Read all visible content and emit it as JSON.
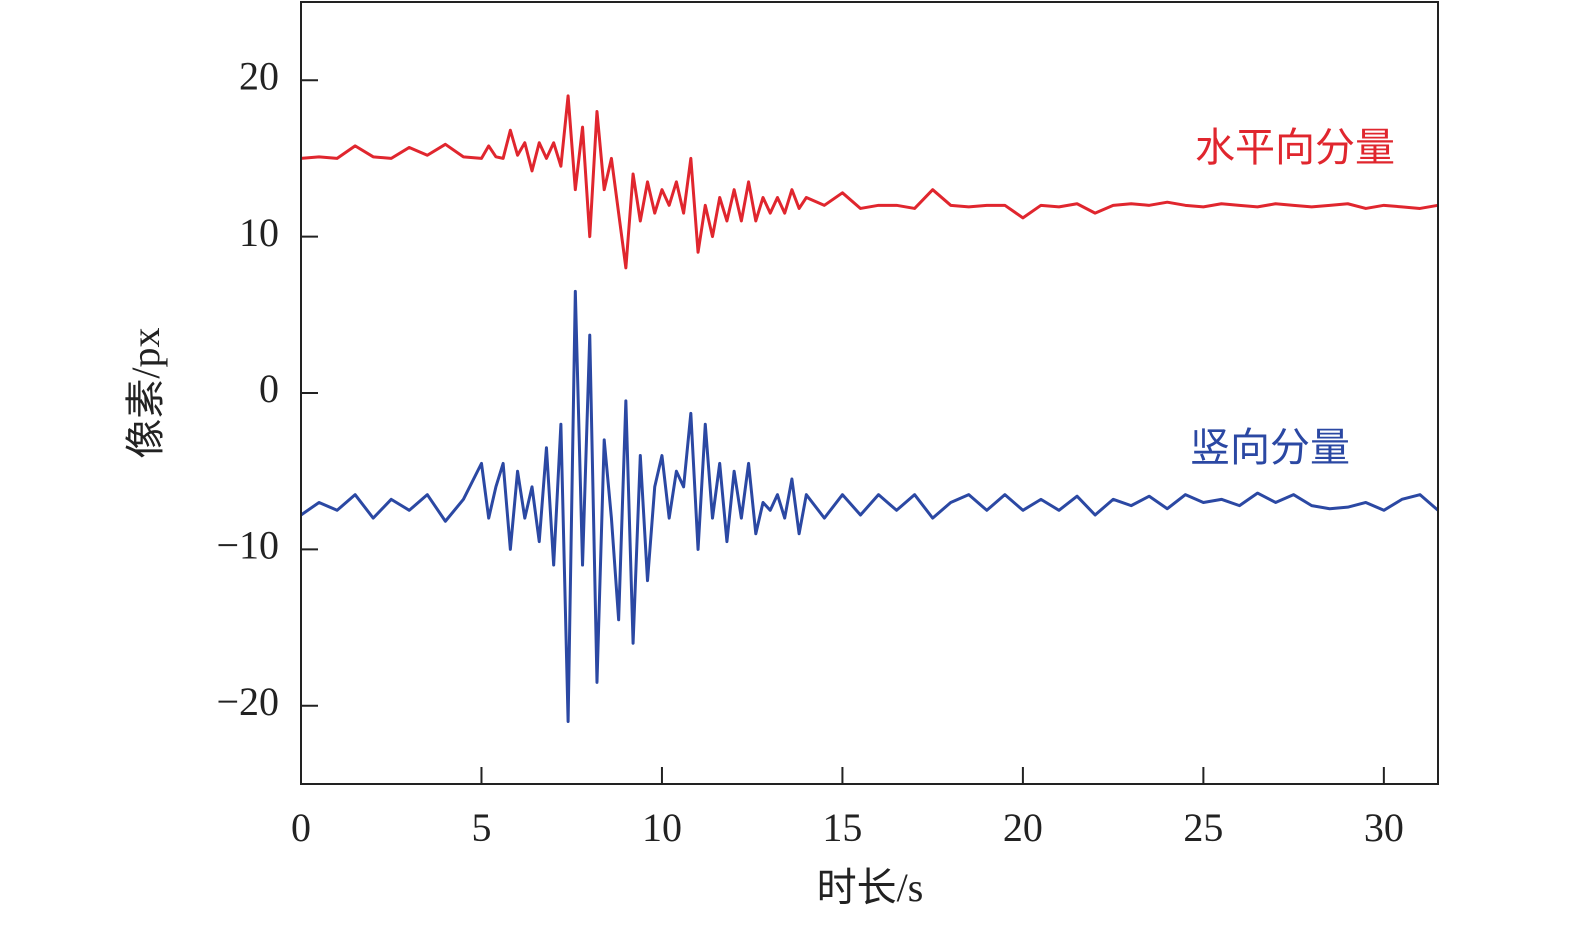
{
  "chart_data": {
    "type": "line",
    "x_label": "时长/s",
    "y_label": "像素/px",
    "xlim": [
      0,
      31.5
    ],
    "ylim": [
      -25,
      25
    ],
    "xticks": [
      0,
      5,
      10,
      15,
      20,
      25,
      30
    ],
    "yticks": [
      {
        "value": -20,
        "label": "−20"
      },
      {
        "value": -10,
        "label": "−10"
      },
      0,
      10,
      20
    ],
    "grid": false,
    "x": [
      0,
      0.5,
      1,
      1.5,
      2,
      2.5,
      3,
      3.5,
      4,
      4.5,
      5,
      5.2,
      5.4,
      5.6,
      5.8,
      6,
      6.2,
      6.4,
      6.6,
      6.8,
      7,
      7.2,
      7.4,
      7.6,
      7.8,
      8,
      8.2,
      8.4,
      8.6,
      8.8,
      9,
      9.2,
      9.4,
      9.6,
      9.8,
      10,
      10.2,
      10.4,
      10.6,
      10.8,
      11,
      11.2,
      11.4,
      11.6,
      11.8,
      12,
      12.2,
      12.4,
      12.6,
      12.8,
      13,
      13.2,
      13.4,
      13.6,
      13.8,
      14,
      14.5,
      15,
      15.5,
      16,
      16.5,
      17,
      17.5,
      18,
      18.5,
      19,
      19.5,
      20,
      20.5,
      21,
      21.5,
      22,
      22.5,
      23,
      23.5,
      24,
      24.5,
      25,
      25.5,
      26,
      26.5,
      27,
      27.5,
      28,
      28.5,
      29,
      29.5,
      30,
      30.5,
      31,
      31.5
    ],
    "series": [
      {
        "name": "水平向分量",
        "color": "#e0262e",
        "values": [
          15,
          15.1,
          15,
          15.8,
          15.1,
          15,
          15.7,
          15.2,
          15.9,
          15.1,
          15,
          15.8,
          15.1,
          15,
          16.8,
          15.2,
          16,
          14.2,
          16,
          15,
          16,
          14.5,
          19,
          13,
          17,
          10,
          18,
          13,
          15,
          11.5,
          8,
          14,
          11,
          13.5,
          11.5,
          13,
          12,
          13.5,
          11.5,
          15,
          9,
          12,
          10,
          12.5,
          11,
          13,
          11,
          13.5,
          11,
          12.5,
          11.5,
          12.5,
          11.5,
          13,
          11.8,
          12.5,
          12,
          12.8,
          11.8,
          12,
          12,
          11.8,
          13,
          12,
          11.9,
          12,
          12,
          11.2,
          12,
          11.9,
          12.1,
          11.5,
          12,
          12.1,
          12,
          12.2,
          12,
          11.9,
          12.1,
          12,
          11.9,
          12.1,
          12,
          11.9,
          12,
          12.1,
          11.8,
          12,
          11.9,
          11.8,
          12
        ]
      },
      {
        "name": "竖向分量",
        "color": "#2b48a3",
        "values": [
          -7.8,
          -7,
          -7.5,
          -6.5,
          -8,
          -6.8,
          -7.5,
          -6.5,
          -8.2,
          -6.8,
          -4.5,
          -8,
          -6,
          -4.5,
          -10,
          -5,
          -8,
          -6,
          -9.5,
          -3.5,
          -11,
          -2,
          -21,
          6.5,
          -11,
          3.7,
          -18.5,
          -3,
          -8,
          -14.5,
          -0.5,
          -16,
          -4,
          -12,
          -6,
          -4,
          -8,
          -5,
          -6,
          -1.3,
          -10,
          -2,
          -8,
          -4.5,
          -9.5,
          -5,
          -8,
          -4.5,
          -9,
          -7,
          -7.5,
          -6.5,
          -8,
          -5.5,
          -9,
          -6.5,
          -8,
          -6.5,
          -7.8,
          -6.5,
          -7.5,
          -6.5,
          -8,
          -7,
          -6.5,
          -7.5,
          -6.5,
          -7.5,
          -6.8,
          -7.5,
          -6.6,
          -7.8,
          -6.8,
          -7.2,
          -6.6,
          -7.4,
          -6.5,
          -7,
          -6.8,
          -7.2,
          -6.4,
          -7,
          -6.5,
          -7.2,
          -7.4,
          -7.3,
          -7,
          -7.5,
          -6.8,
          -6.5,
          -7.5
        ]
      }
    ]
  }
}
